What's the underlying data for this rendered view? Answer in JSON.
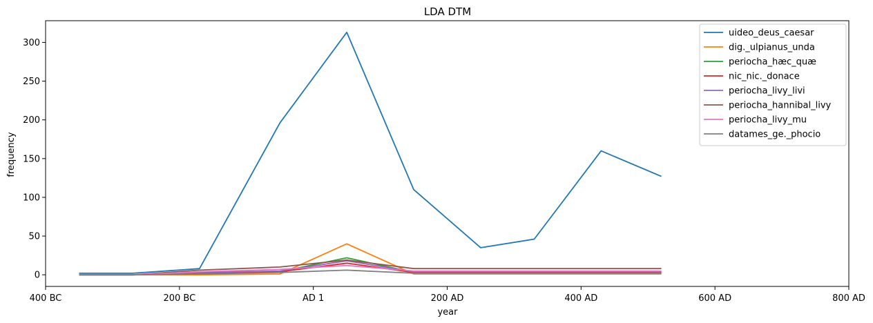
{
  "chart_data": {
    "type": "line",
    "title": "LDA DTM",
    "xlabel": "year",
    "ylabel": "frequency",
    "x_values": [
      -350,
      -270,
      -170,
      -50,
      50,
      150,
      250,
      330,
      430,
      520
    ],
    "xlim": [
      -400,
      800
    ],
    "x_ticks": [
      {
        "value": -400,
        "label": "400 BC"
      },
      {
        "value": -200,
        "label": "200 BC"
      },
      {
        "value": 0,
        "label": "AD 1"
      },
      {
        "value": 200,
        "label": "200 AD"
      },
      {
        "value": 400,
        "label": "400 AD"
      },
      {
        "value": 600,
        "label": "600 AD"
      },
      {
        "value": 800,
        "label": "800 AD"
      }
    ],
    "x_tick_positions": [
      -400,
      -200,
      0,
      200,
      400,
      600,
      800
    ],
    "ylim": [
      -15,
      328
    ],
    "y_ticks": [
      0,
      50,
      100,
      150,
      200,
      250,
      300
    ],
    "grid": false,
    "legend_position": "top-right",
    "series": [
      {
        "name": "uideo_deus_caesar",
        "color": "#1f77b4",
        "values": [
          2,
          2,
          8,
          196,
          313,
          110,
          35,
          46,
          160,
          127
        ]
      },
      {
        "name": "dig._ulpianus_unda",
        "color": "#ff7f0e",
        "values": [
          0,
          0,
          0,
          1,
          40,
          1,
          1,
          1,
          1,
          1
        ]
      },
      {
        "name": "periocha_hæc_quæ",
        "color": "#2ca02c",
        "values": [
          0,
          0,
          2,
          4,
          22,
          3,
          3,
          3,
          3,
          3
        ]
      },
      {
        "name": "nic_nic._donace",
        "color": "#d62728",
        "values": [
          0,
          0,
          2,
          4,
          15,
          3,
          3,
          3,
          3,
          3
        ]
      },
      {
        "name": "periocha_livy_livi",
        "color": "#9467bd",
        "values": [
          0,
          0,
          3,
          5,
          18,
          4,
          4,
          4,
          4,
          4
        ]
      },
      {
        "name": "periocha_hannibal_livy",
        "color": "#8c564b",
        "values": [
          0,
          0,
          6,
          10,
          19,
          8,
          8,
          8,
          8,
          8
        ]
      },
      {
        "name": "periocha_livy_mu",
        "color": "#e377c2",
        "values": [
          0,
          0,
          4,
          7,
          12,
          5,
          5,
          5,
          5,
          5
        ]
      },
      {
        "name": "datames_ge._phocio",
        "color": "#7f7f7f",
        "values": [
          0,
          0,
          1,
          3,
          6,
          2,
          2,
          2,
          2,
          2
        ]
      }
    ]
  }
}
